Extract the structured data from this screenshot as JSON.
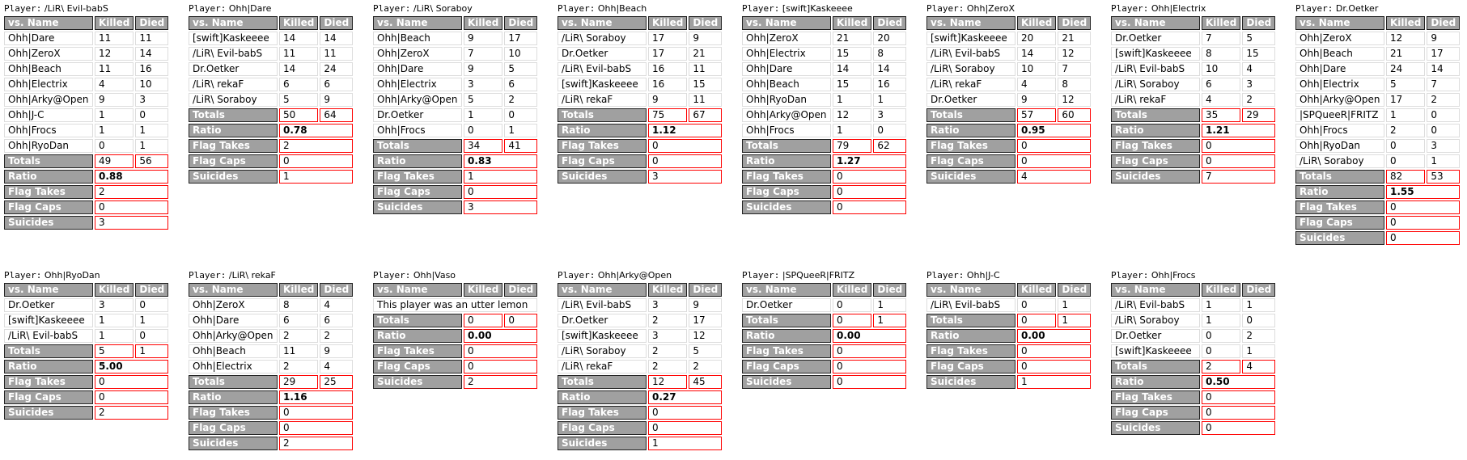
{
  "labels": {
    "player_prefix": "Player:",
    "col_name": "vs. Name",
    "col_killed": "Killed",
    "col_died": "Died",
    "totals": "Totals",
    "ratio": "Ratio",
    "flag_takes": "Flag Takes",
    "flag_caps": "Flag Caps",
    "suicides": "Suicides"
  },
  "colors": {
    "header_bg": "#a0a0a0",
    "highlight_border": "#ff0000"
  },
  "rows": [
    [
      {
        "player": "/LiR\\ Evil-babS",
        "opponents": [
          {
            "name": "Ohh|Dare",
            "killed": "11",
            "died": "11"
          },
          {
            "name": "Ohh|ZeroX",
            "killed": "12",
            "died": "14"
          },
          {
            "name": "Ohh|Beach",
            "killed": "11",
            "died": "16"
          },
          {
            "name": "Ohh|Electrix",
            "killed": "4",
            "died": "10"
          },
          {
            "name": "Ohh|Arky@Open",
            "killed": "9",
            "died": "3"
          },
          {
            "name": "Ohh|J-C",
            "killed": "1",
            "died": "0"
          },
          {
            "name": "Ohh|Frocs",
            "killed": "1",
            "died": "1"
          },
          {
            "name": "Ohh|RyoDan",
            "killed": "0",
            "died": "1"
          }
        ],
        "total_killed": "49",
        "total_died": "56",
        "ratio": "0.88",
        "flag_takes": "2",
        "flag_caps": "0",
        "suicides": "3"
      },
      {
        "player": "Ohh|Dare",
        "opponents": [
          {
            "name": "[swift]Kaskeeee",
            "killed": "14",
            "died": "14"
          },
          {
            "name": "/LiR\\ Evil-babS",
            "killed": "11",
            "died": "11"
          },
          {
            "name": "Dr.Oetker",
            "killed": "14",
            "died": "24"
          },
          {
            "name": "/LiR\\ rekaF",
            "killed": "6",
            "died": "6"
          },
          {
            "name": "/LiR\\ Soraboy",
            "killed": "5",
            "died": "9"
          }
        ],
        "total_killed": "50",
        "total_died": "64",
        "ratio": "0.78",
        "flag_takes": "2",
        "flag_caps": "0",
        "suicides": "1"
      },
      {
        "player": "/LiR\\ Soraboy",
        "opponents": [
          {
            "name": "Ohh|Beach",
            "killed": "9",
            "died": "17"
          },
          {
            "name": "Ohh|ZeroX",
            "killed": "7",
            "died": "10"
          },
          {
            "name": "Ohh|Dare",
            "killed": "9",
            "died": "5"
          },
          {
            "name": "Ohh|Electrix",
            "killed": "3",
            "died": "6"
          },
          {
            "name": "Ohh|Arky@Open",
            "killed": "5",
            "died": "2"
          },
          {
            "name": "Dr.Oetker",
            "killed": "1",
            "died": "0"
          },
          {
            "name": "Ohh|Frocs",
            "killed": "0",
            "died": "1"
          }
        ],
        "total_killed": "34",
        "total_died": "41",
        "ratio": "0.83",
        "flag_takes": "1",
        "flag_caps": "0",
        "suicides": "3"
      },
      {
        "player": "Ohh|Beach",
        "opponents": [
          {
            "name": "/LiR\\ Soraboy",
            "killed": "17",
            "died": "9"
          },
          {
            "name": "Dr.Oetker",
            "killed": "17",
            "died": "21"
          },
          {
            "name": "/LiR\\ Evil-babS",
            "killed": "16",
            "died": "11"
          },
          {
            "name": "[swift]Kaskeeee",
            "killed": "16",
            "died": "15"
          },
          {
            "name": "/LiR\\ rekaF",
            "killed": "9",
            "died": "11"
          }
        ],
        "total_killed": "75",
        "total_died": "67",
        "ratio": "1.12",
        "flag_takes": "0",
        "flag_caps": "0",
        "suicides": "3"
      },
      {
        "player": "[swift]Kaskeeee",
        "opponents": [
          {
            "name": "Ohh|ZeroX",
            "killed": "21",
            "died": "20"
          },
          {
            "name": "Ohh|Electrix",
            "killed": "15",
            "died": "8"
          },
          {
            "name": "Ohh|Dare",
            "killed": "14",
            "died": "14"
          },
          {
            "name": "Ohh|Beach",
            "killed": "15",
            "died": "16"
          },
          {
            "name": "Ohh|RyoDan",
            "killed": "1",
            "died": "1"
          },
          {
            "name": "Ohh|Arky@Open",
            "killed": "12",
            "died": "3"
          },
          {
            "name": "Ohh|Frocs",
            "killed": "1",
            "died": "0"
          }
        ],
        "total_killed": "79",
        "total_died": "62",
        "ratio": "1.27",
        "flag_takes": "0",
        "flag_caps": "0",
        "suicides": "0"
      },
      {
        "player": "Ohh|ZeroX",
        "opponents": [
          {
            "name": "[swift]Kaskeeee",
            "killed": "20",
            "died": "21"
          },
          {
            "name": "/LiR\\ Evil-babS",
            "killed": "14",
            "died": "12"
          },
          {
            "name": "/LiR\\ Soraboy",
            "killed": "10",
            "died": "7"
          },
          {
            "name": "/LiR\\ rekaF",
            "killed": "4",
            "died": "8"
          },
          {
            "name": "Dr.Oetker",
            "killed": "9",
            "died": "12"
          }
        ],
        "total_killed": "57",
        "total_died": "60",
        "ratio": "0.95",
        "flag_takes": "0",
        "flag_caps": "0",
        "suicides": "4"
      },
      {
        "player": "Ohh|Electrix",
        "opponents": [
          {
            "name": "Dr.Oetker",
            "killed": "7",
            "died": "5"
          },
          {
            "name": "[swift]Kaskeeee",
            "killed": "8",
            "died": "15"
          },
          {
            "name": "/LiR\\ Evil-babS",
            "killed": "10",
            "died": "4"
          },
          {
            "name": "/LiR\\ Soraboy",
            "killed": "6",
            "died": "3"
          },
          {
            "name": "/LiR\\ rekaF",
            "killed": "4",
            "died": "2"
          }
        ],
        "total_killed": "35",
        "total_died": "29",
        "ratio": "1.21",
        "flag_takes": "0",
        "flag_caps": "0",
        "suicides": "7"
      },
      {
        "player": "Dr.Oetker",
        "opponents": [
          {
            "name": "Ohh|ZeroX",
            "killed": "12",
            "died": "9"
          },
          {
            "name": "Ohh|Beach",
            "killed": "21",
            "died": "17"
          },
          {
            "name": "Ohh|Dare",
            "killed": "24",
            "died": "14"
          },
          {
            "name": "Ohh|Electrix",
            "killed": "5",
            "died": "7"
          },
          {
            "name": "Ohh|Arky@Open",
            "killed": "17",
            "died": "2"
          },
          {
            "name": "|SPQueeR|FRITZ",
            "killed": "1",
            "died": "0"
          },
          {
            "name": "Ohh|Frocs",
            "killed": "2",
            "died": "0"
          },
          {
            "name": "Ohh|RyoDan",
            "killed": "0",
            "died": "3"
          },
          {
            "name": "/LiR\\ Soraboy",
            "killed": "0",
            "died": "1"
          }
        ],
        "total_killed": "82",
        "total_died": "53",
        "ratio": "1.55",
        "flag_takes": "0",
        "flag_caps": "0",
        "suicides": "0"
      }
    ],
    [
      {
        "player": "Ohh|RyoDan",
        "opponents": [
          {
            "name": "Dr.Oetker",
            "killed": "3",
            "died": "0"
          },
          {
            "name": "[swift]Kaskeeee",
            "killed": "1",
            "died": "1"
          },
          {
            "name": "/LiR\\ Evil-babS",
            "killed": "1",
            "died": "0"
          }
        ],
        "total_killed": "5",
        "total_died": "1",
        "ratio": "5.00",
        "flag_takes": "0",
        "flag_caps": "0",
        "suicides": "2"
      },
      {
        "player": "/LiR\\ rekaF",
        "opponents": [
          {
            "name": "Ohh|ZeroX",
            "killed": "8",
            "died": "4"
          },
          {
            "name": "Ohh|Dare",
            "killed": "6",
            "died": "6"
          },
          {
            "name": "Ohh|Arky@Open",
            "killed": "2",
            "died": "2"
          },
          {
            "name": "Ohh|Beach",
            "killed": "11",
            "died": "9"
          },
          {
            "name": "Ohh|Electrix",
            "killed": "2",
            "died": "4"
          }
        ],
        "total_killed": "29",
        "total_died": "25",
        "ratio": "1.16",
        "flag_takes": "0",
        "flag_caps": "0",
        "suicides": "2"
      },
      {
        "player": "Ohh|Vaso",
        "opponents": [],
        "note": "This player was an utter lemon",
        "total_killed": "0",
        "total_died": "0",
        "ratio": "0.00",
        "flag_takes": "0",
        "flag_caps": "0",
        "suicides": "2"
      },
      {
        "player": "Ohh|Arky@Open",
        "opponents": [
          {
            "name": "/LiR\\ Evil-babS",
            "killed": "3",
            "died": "9"
          },
          {
            "name": "Dr.Oetker",
            "killed": "2",
            "died": "17"
          },
          {
            "name": "[swift]Kaskeeee",
            "killed": "3",
            "died": "12"
          },
          {
            "name": "/LiR\\ Soraboy",
            "killed": "2",
            "died": "5"
          },
          {
            "name": "/LiR\\ rekaF",
            "killed": "2",
            "died": "2"
          }
        ],
        "total_killed": "12",
        "total_died": "45",
        "ratio": "0.27",
        "flag_takes": "0",
        "flag_caps": "0",
        "suicides": "1"
      },
      {
        "player": "|SPQueeR|FRITZ",
        "opponents": [
          {
            "name": "Dr.Oetker",
            "killed": "0",
            "died": "1"
          }
        ],
        "total_killed": "0",
        "total_died": "1",
        "ratio": "0.00",
        "flag_takes": "0",
        "flag_caps": "0",
        "suicides": "0"
      },
      {
        "player": "Ohh|J-C",
        "opponents": [
          {
            "name": "/LiR\\ Evil-babS",
            "killed": "0",
            "died": "1"
          }
        ],
        "total_killed": "0",
        "total_died": "1",
        "ratio": "0.00",
        "flag_takes": "0",
        "flag_caps": "0",
        "suicides": "1"
      },
      {
        "player": "Ohh|Frocs",
        "opponents": [
          {
            "name": "/LiR\\ Evil-babS",
            "killed": "1",
            "died": "1"
          },
          {
            "name": "/LiR\\ Soraboy",
            "killed": "1",
            "died": "0"
          },
          {
            "name": "Dr.Oetker",
            "killed": "0",
            "died": "2"
          },
          {
            "name": "[swift]Kaskeeee",
            "killed": "0",
            "died": "1"
          }
        ],
        "total_killed": "2",
        "total_died": "4",
        "ratio": "0.50",
        "flag_takes": "0",
        "flag_caps": "0",
        "suicides": "0"
      }
    ]
  ]
}
